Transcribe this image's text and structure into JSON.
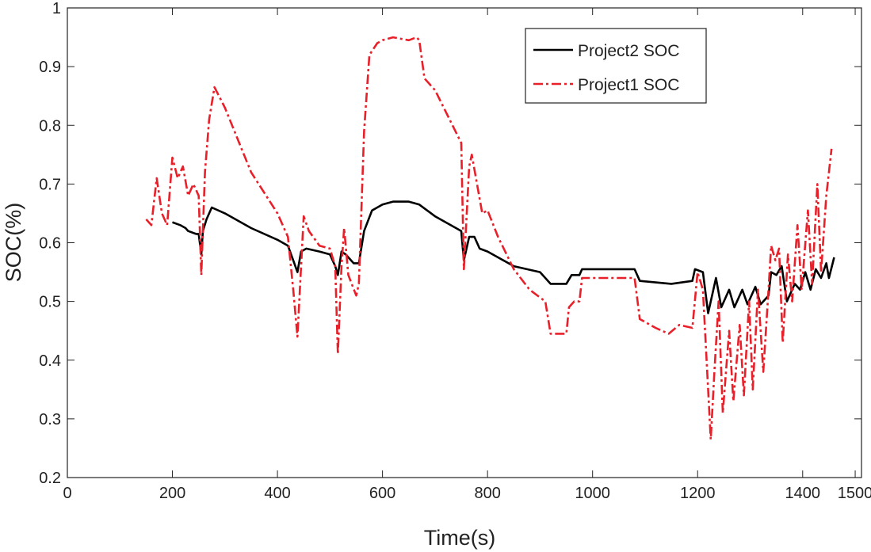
{
  "chart_data": {
    "type": "line",
    "xlabel": "Time(s)",
    "ylabel": "SOC(%)",
    "xlim": [
      0,
      1512
    ],
    "ylim": [
      0.2,
      1
    ],
    "xticks": [
      0,
      200,
      400,
      600,
      800,
      1000,
      1200,
      1400,
      1500
    ],
    "yticks": [
      0.2,
      0.3,
      0.4,
      0.5,
      0.6,
      0.7,
      0.8,
      0.9,
      1
    ],
    "grid": false,
    "legend": "upper right",
    "series": [
      {
        "name": "Project2 SOC",
        "color": "#000000",
        "style": "solid",
        "x": [
          200,
          215,
          225,
          230,
          245,
          250,
          255,
          258,
          265,
          275,
          300,
          350,
          400,
          420,
          430,
          438,
          445,
          455,
          480,
          500,
          510,
          515,
          522,
          530,
          545,
          555,
          565,
          580,
          600,
          620,
          650,
          670,
          700,
          740,
          750,
          755,
          765,
          775,
          785,
          800,
          850,
          900,
          920,
          950,
          960,
          975,
          980,
          1080,
          1090,
          1150,
          1190,
          1195,
          1210,
          1220,
          1235,
          1245,
          1260,
          1270,
          1285,
          1295,
          1310,
          1320,
          1335,
          1340,
          1350,
          1360,
          1370,
          1385,
          1395,
          1405,
          1415,
          1425,
          1435,
          1445,
          1450,
          1460
        ],
        "values": [
          0.635,
          0.63,
          0.625,
          0.62,
          0.615,
          0.615,
          0.58,
          0.62,
          0.64,
          0.66,
          0.65,
          0.625,
          0.605,
          0.595,
          0.57,
          0.55,
          0.585,
          0.59,
          0.585,
          0.58,
          0.56,
          0.545,
          0.585,
          0.58,
          0.565,
          0.565,
          0.62,
          0.655,
          0.665,
          0.67,
          0.67,
          0.665,
          0.645,
          0.625,
          0.62,
          0.57,
          0.61,
          0.61,
          0.59,
          0.585,
          0.56,
          0.55,
          0.53,
          0.53,
          0.545,
          0.545,
          0.555,
          0.555,
          0.535,
          0.53,
          0.535,
          0.555,
          0.55,
          0.48,
          0.54,
          0.49,
          0.52,
          0.49,
          0.52,
          0.495,
          0.525,
          0.495,
          0.51,
          0.55,
          0.545,
          0.56,
          0.5,
          0.53,
          0.52,
          0.55,
          0.52,
          0.555,
          0.54,
          0.565,
          0.54,
          0.575
        ]
      },
      {
        "name": "Project1 SOC",
        "color": "#e8202a",
        "style": "dashdot",
        "x": [
          150,
          160,
          170,
          180,
          190,
          200,
          210,
          220,
          230,
          240,
          250,
          255,
          262,
          270,
          280,
          300,
          350,
          400,
          420,
          430,
          438,
          445,
          450,
          460,
          480,
          500,
          510,
          515,
          522,
          527,
          535,
          550,
          555,
          565,
          575,
          590,
          600,
          620,
          650,
          665,
          670,
          680,
          700,
          750,
          755,
          765,
          770,
          780,
          790,
          800,
          820,
          850,
          880,
          910,
          920,
          950,
          955,
          965,
          975,
          980,
          1080,
          1090,
          1120,
          1145,
          1165,
          1190,
          1200,
          1210,
          1220,
          1225,
          1232,
          1240,
          1248,
          1260,
          1268,
          1280,
          1288,
          1298,
          1305,
          1315,
          1325,
          1335,
          1340,
          1348,
          1355,
          1362,
          1372,
          1380,
          1390,
          1398,
          1410,
          1418,
          1428,
          1435,
          1445,
          1455
        ],
        "values": [
          0.64,
          0.63,
          0.71,
          0.65,
          0.63,
          0.745,
          0.71,
          0.73,
          0.68,
          0.7,
          0.68,
          0.545,
          0.72,
          0.81,
          0.865,
          0.83,
          0.72,
          0.65,
          0.61,
          0.52,
          0.44,
          0.56,
          0.645,
          0.62,
          0.595,
          0.59,
          0.56,
          0.41,
          0.56,
          0.625,
          0.545,
          0.51,
          0.53,
          0.79,
          0.92,
          0.94,
          0.945,
          0.95,
          0.945,
          0.95,
          0.945,
          0.88,
          0.86,
          0.77,
          0.555,
          0.73,
          0.75,
          0.7,
          0.65,
          0.655,
          0.61,
          0.555,
          0.52,
          0.5,
          0.445,
          0.445,
          0.49,
          0.5,
          0.5,
          0.54,
          0.54,
          0.47,
          0.455,
          0.445,
          0.46,
          0.455,
          0.55,
          0.52,
          0.35,
          0.265,
          0.38,
          0.5,
          0.31,
          0.45,
          0.33,
          0.46,
          0.34,
          0.5,
          0.35,
          0.52,
          0.38,
          0.52,
          0.595,
          0.57,
          0.59,
          0.43,
          0.58,
          0.5,
          0.63,
          0.52,
          0.655,
          0.53,
          0.7,
          0.55,
          0.68,
          0.76
        ]
      }
    ]
  }
}
